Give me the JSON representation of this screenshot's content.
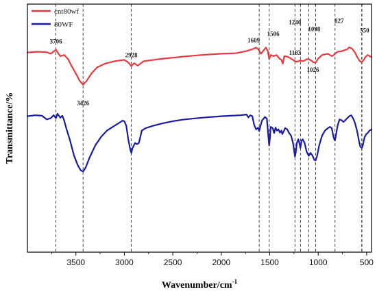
{
  "chart_data": {
    "type": "line",
    "xlabel": "Wavenumber/cm",
    "xlabel_sup": "-1",
    "ylabel": "Transmittance/%",
    "xlim": [
      4000,
      450
    ],
    "x_reversed": true,
    "ylim": [
      0,
      1
    ],
    "y_ticks_labeled": false,
    "x_ticks": [
      3500,
      3000,
      2500,
      2000,
      1500,
      1000,
      500
    ],
    "legend": [
      {
        "name": "cnt80wf",
        "color": "#e8393e"
      },
      {
        "name": "80WF",
        "color": "#1a1aa6"
      }
    ],
    "reference_lines": [
      {
        "x": 3706,
        "label": "3706"
      },
      {
        "x": 3426,
        "label": "3426"
      },
      {
        "x": 2928,
        "label": "2928"
      },
      {
        "x": 1609,
        "label": "1609"
      },
      {
        "x": 1506,
        "label": "1506"
      },
      {
        "x": 1240,
        "label": "1240"
      },
      {
        "x": 1183,
        "label": "1183"
      },
      {
        "x": 1098,
        "label": "1098"
      },
      {
        "x": 1026,
        "label": "1026"
      },
      {
        "x": 827,
        "label": "827"
      },
      {
        "x": 550,
        "label": "550"
      }
    ],
    "series": [
      {
        "name": "cnt80wf",
        "color": "#e8393e",
        "points": [
          [
            4000,
            0.805
          ],
          [
            3900,
            0.808
          ],
          [
            3800,
            0.806
          ],
          [
            3760,
            0.8
          ],
          [
            3720,
            0.812
          ],
          [
            3706,
            0.816
          ],
          [
            3680,
            0.8
          ],
          [
            3660,
            0.79
          ],
          [
            3620,
            0.795
          ],
          [
            3580,
            0.778
          ],
          [
            3550,
            0.755
          ],
          [
            3500,
            0.72
          ],
          [
            3460,
            0.69
          ],
          [
            3426,
            0.675
          ],
          [
            3390,
            0.69
          ],
          [
            3340,
            0.72
          ],
          [
            3280,
            0.745
          ],
          [
            3200,
            0.76
          ],
          [
            3100,
            0.77
          ],
          [
            3000,
            0.775
          ],
          [
            2960,
            0.765
          ],
          [
            2928,
            0.75
          ],
          [
            2900,
            0.762
          ],
          [
            2860,
            0.752
          ],
          [
            2800,
            0.77
          ],
          [
            2600,
            0.78
          ],
          [
            2400,
            0.788
          ],
          [
            2200,
            0.795
          ],
          [
            2000,
            0.8
          ],
          [
            1850,
            0.802
          ],
          [
            1750,
            0.81
          ],
          [
            1680,
            0.818
          ],
          [
            1640,
            0.825
          ],
          [
            1620,
            0.818
          ],
          [
            1609,
            0.812
          ],
          [
            1590,
            0.8
          ],
          [
            1570,
            0.81
          ],
          [
            1540,
            0.825
          ],
          [
            1520,
            0.81
          ],
          [
            1506,
            0.778
          ],
          [
            1490,
            0.795
          ],
          [
            1460,
            0.79
          ],
          [
            1430,
            0.795
          ],
          [
            1400,
            0.78
          ],
          [
            1380,
            0.775
          ],
          [
            1365,
            0.76
          ],
          [
            1350,
            0.79
          ],
          [
            1320,
            0.788
          ],
          [
            1300,
            0.785
          ],
          [
            1280,
            0.78
          ],
          [
            1260,
            0.775
          ],
          [
            1240,
            0.77
          ],
          [
            1220,
            0.768
          ],
          [
            1200,
            0.77
          ],
          [
            1183,
            0.773
          ],
          [
            1160,
            0.77
          ],
          [
            1140,
            0.772
          ],
          [
            1120,
            0.778
          ],
          [
            1098,
            0.778
          ],
          [
            1070,
            0.772
          ],
          [
            1050,
            0.765
          ],
          [
            1026,
            0.765
          ],
          [
            1000,
            0.78
          ],
          [
            960,
            0.795
          ],
          [
            900,
            0.8
          ],
          [
            860,
            0.79
          ],
          [
            840,
            0.795
          ],
          [
            827,
            0.8
          ],
          [
            800,
            0.808
          ],
          [
            760,
            0.81
          ],
          [
            700,
            0.818
          ],
          [
            680,
            0.826
          ],
          [
            650,
            0.82
          ],
          [
            620,
            0.805
          ],
          [
            600,
            0.788
          ],
          [
            580,
            0.775
          ],
          [
            565,
            0.768
          ],
          [
            550,
            0.766
          ],
          [
            530,
            0.775
          ],
          [
            510,
            0.788
          ],
          [
            490,
            0.795
          ],
          [
            470,
            0.79
          ],
          [
            450,
            0.786
          ]
        ]
      },
      {
        "name": "80WF",
        "color": "#1a1aa6",
        "points": [
          [
            4000,
            0.548
          ],
          [
            3920,
            0.552
          ],
          [
            3850,
            0.55
          ],
          [
            3800,
            0.535
          ],
          [
            3760,
            0.54
          ],
          [
            3730,
            0.552
          ],
          [
            3706,
            0.54
          ],
          [
            3690,
            0.558
          ],
          [
            3660,
            0.542
          ],
          [
            3640,
            0.55
          ],
          [
            3620,
            0.53
          ],
          [
            3600,
            0.5
          ],
          [
            3560,
            0.45
          ],
          [
            3520,
            0.39
          ],
          [
            3480,
            0.35
          ],
          [
            3450,
            0.33
          ],
          [
            3426,
            0.325
          ],
          [
            3400,
            0.34
          ],
          [
            3360,
            0.38
          ],
          [
            3300,
            0.43
          ],
          [
            3240,
            0.465
          ],
          [
            3180,
            0.49
          ],
          [
            3100,
            0.51
          ],
          [
            3050,
            0.522
          ],
          [
            3020,
            0.53
          ],
          [
            3000,
            0.528
          ],
          [
            2980,
            0.51
          ],
          [
            2960,
            0.455
          ],
          [
            2940,
            0.415
          ],
          [
            2928,
            0.4
          ],
          [
            2915,
            0.42
          ],
          [
            2890,
            0.44
          ],
          [
            2870,
            0.435
          ],
          [
            2850,
            0.44
          ],
          [
            2820,
            0.49
          ],
          [
            2780,
            0.5
          ],
          [
            2700,
            0.51
          ],
          [
            2600,
            0.52
          ],
          [
            2500,
            0.528
          ],
          [
            2400,
            0.534
          ],
          [
            2300,
            0.538
          ],
          [
            2200,
            0.542
          ],
          [
            2100,
            0.545
          ],
          [
            2000,
            0.548
          ],
          [
            1900,
            0.55
          ],
          [
            1800,
            0.552
          ],
          [
            1740,
            0.555
          ],
          [
            1720,
            0.543
          ],
          [
            1700,
            0.552
          ],
          [
            1680,
            0.548
          ],
          [
            1660,
            0.512
          ],
          [
            1640,
            0.495
          ],
          [
            1620,
            0.502
          ],
          [
            1609,
            0.488
          ],
          [
            1595,
            0.51
          ],
          [
            1580,
            0.53
          ],
          [
            1550,
            0.545
          ],
          [
            1530,
            0.538
          ],
          [
            1515,
            0.47
          ],
          [
            1506,
            0.43
          ],
          [
            1498,
            0.46
          ],
          [
            1490,
            0.505
          ],
          [
            1470,
            0.5
          ],
          [
            1455,
            0.48
          ],
          [
            1440,
            0.502
          ],
          [
            1425,
            0.49
          ],
          [
            1410,
            0.495
          ],
          [
            1395,
            0.482
          ],
          [
            1380,
            0.49
          ],
          [
            1370,
            0.476
          ],
          [
            1340,
            0.5
          ],
          [
            1320,
            0.495
          ],
          [
            1300,
            0.48
          ],
          [
            1280,
            0.47
          ],
          [
            1260,
            0.44
          ],
          [
            1245,
            0.4
          ],
          [
            1240,
            0.385
          ],
          [
            1232,
            0.4
          ],
          [
            1220,
            0.44
          ],
          [
            1205,
            0.455
          ],
          [
            1195,
            0.44
          ],
          [
            1183,
            0.42
          ],
          [
            1172,
            0.45
          ],
          [
            1160,
            0.455
          ],
          [
            1140,
            0.44
          ],
          [
            1120,
            0.405
          ],
          [
            1100,
            0.39
          ],
          [
            1098,
            0.388
          ],
          [
            1080,
            0.4
          ],
          [
            1060,
            0.39
          ],
          [
            1040,
            0.372
          ],
          [
            1026,
            0.37
          ],
          [
            1010,
            0.39
          ],
          [
            990,
            0.43
          ],
          [
            960,
            0.47
          ],
          [
            930,
            0.49
          ],
          [
            900,
            0.5
          ],
          [
            880,
            0.505
          ],
          [
            860,
            0.5
          ],
          [
            845,
            0.47
          ],
          [
            835,
            0.455
          ],
          [
            827,
            0.45
          ],
          [
            818,
            0.47
          ],
          [
            800,
            0.51
          ],
          [
            780,
            0.535
          ],
          [
            760,
            0.532
          ],
          [
            740,
            0.525
          ],
          [
            720,
            0.532
          ],
          [
            700,
            0.54
          ],
          [
            680,
            0.548
          ],
          [
            660,
            0.552
          ],
          [
            640,
            0.54
          ],
          [
            620,
            0.52
          ],
          [
            600,
            0.49
          ],
          [
            580,
            0.45
          ],
          [
            565,
            0.425
          ],
          [
            550,
            0.42
          ],
          [
            540,
            0.43
          ],
          [
            530,
            0.45
          ],
          [
            520,
            0.465
          ],
          [
            505,
            0.475
          ],
          [
            490,
            0.48
          ],
          [
            470,
            0.49
          ],
          [
            450,
            0.495
          ]
        ]
      }
    ]
  }
}
